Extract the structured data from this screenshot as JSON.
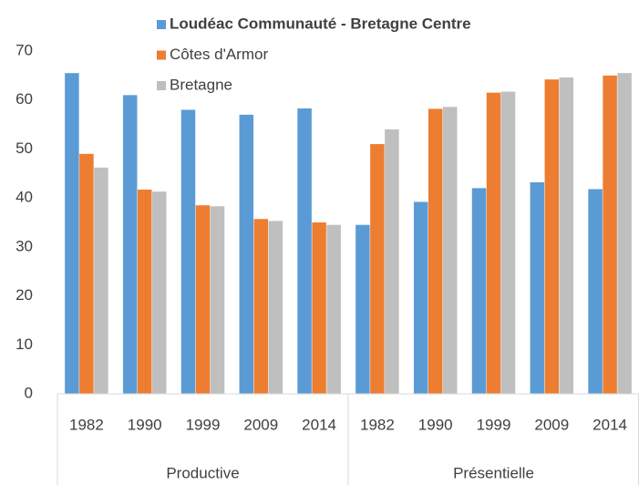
{
  "chart_data": {
    "type": "bar",
    "categories": [
      "1982",
      "1990",
      "1999",
      "2009",
      "2014",
      "1982",
      "1990",
      "1999",
      "2009",
      "2014"
    ],
    "groups": [
      "Productive",
      "Présentielle"
    ],
    "series": [
      {
        "name": "Loudéac Communauté - Bretagne Centre",
        "color": "#5b9bd5",
        "values": [
          65.5,
          61,
          58,
          57,
          58.3,
          34.5,
          39.2,
          42,
          43.2,
          41.8
        ]
      },
      {
        "name": "Côtes d'Armor",
        "color": "#ed7d31",
        "values": [
          49,
          41.7,
          38.5,
          35.7,
          35,
          51,
          58.2,
          61.5,
          64.2,
          65
        ]
      },
      {
        "name": "Bretagne",
        "color": "#bfbfbf",
        "values": [
          46.2,
          41.3,
          38.3,
          35.3,
          34.5,
          54,
          58.6,
          61.7,
          64.6,
          65.5
        ]
      }
    ],
    "ylim": [
      0,
      70
    ],
    "yticks": [
      0,
      10,
      20,
      30,
      40,
      50,
      60,
      70
    ],
    "grid": false
  }
}
